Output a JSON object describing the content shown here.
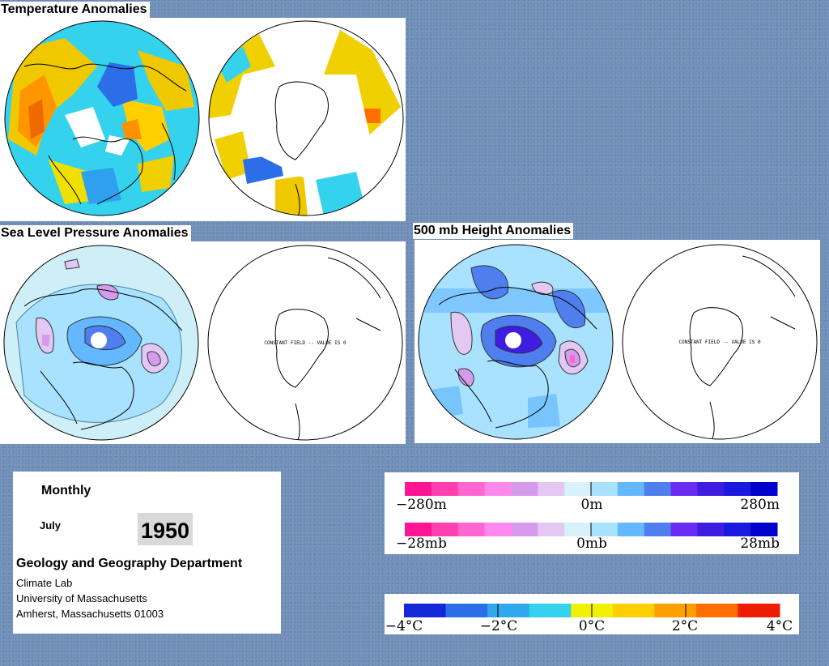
{
  "titles": {
    "temperature": "Temperature Anomalies",
    "slp": "Sea Level Pressure Anomalies",
    "height": "500 mb Height Anomalies"
  },
  "maps": {
    "constant_field_text": "CONSTANT FIELD -- VALUE IS 0"
  },
  "info": {
    "period": "Monthly",
    "month": "July",
    "year": "1950",
    "department": "Geology and Geography Department",
    "lab": "Climate Lab",
    "university": "University of Massachusetts",
    "address": "Amherst, Massachusetts 01003"
  },
  "legends": {
    "height": {
      "left": "−280m",
      "center": "0m",
      "right": "280m"
    },
    "pressure": {
      "left": "−28mb",
      "center": "0mb",
      "right": "28mb"
    },
    "temperature": [
      "−4°C",
      "−2°C",
      "0°C",
      "2°C",
      "4°C"
    ]
  },
  "colors": {
    "background": "#7190b9",
    "anomaly_scale": [
      "#ff1493",
      "#ff40b0",
      "#ff66d0",
      "#ff88ee",
      "#d69bec",
      "#e2c8f2",
      "#d7f2fb",
      "#a8e2ff",
      "#63b8ff",
      "#4f7fef",
      "#6a2cf0",
      "#3e1ce0",
      "#1a1adf",
      "#0000cc"
    ],
    "temperature_scale": [
      "#1428d8",
      "#2c6ee8",
      "#2fa8ee",
      "#35d2ee",
      "#f0f000",
      "#ffcf00",
      "#ff9f00",
      "#ff6e00",
      "#ee1c00"
    ]
  }
}
